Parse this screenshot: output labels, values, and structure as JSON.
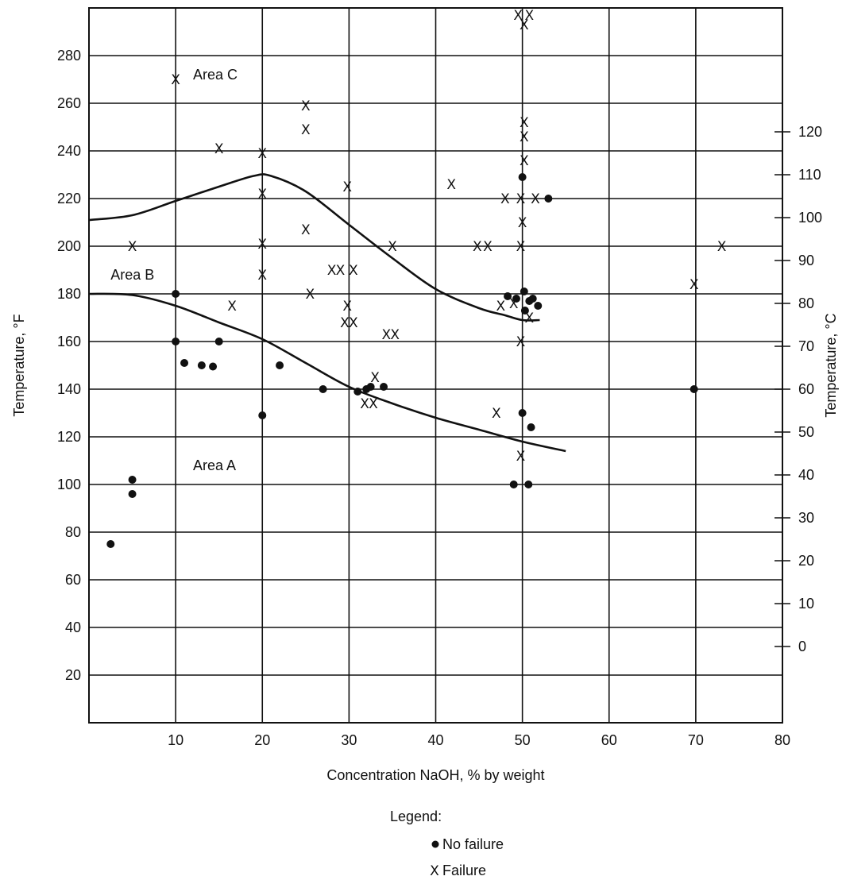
{
  "chart_data": {
    "type": "scatter",
    "title": "",
    "xlabel": "Concentration NaOH, % by weight",
    "ylabel": "Temperature, °F",
    "ylabel_right": "Temperature, °C",
    "xlim": [
      0,
      80
    ],
    "ylim": [
      0,
      300
    ],
    "x_ticks": [
      10,
      20,
      30,
      40,
      50,
      60,
      70,
      80
    ],
    "y_ticks": [
      20,
      40,
      60,
      80,
      100,
      120,
      140,
      160,
      180,
      200,
      220,
      240,
      260,
      280
    ],
    "y_right_ticks": [
      0,
      10,
      20,
      30,
      40,
      50,
      60,
      70,
      80,
      90,
      100,
      110,
      120
    ],
    "grid": true,
    "regions": [
      {
        "label": "Area A",
        "x": 12,
        "y": 108
      },
      {
        "label": "Area B",
        "x": 2.5,
        "y": 188
      },
      {
        "label": "Area C",
        "x": 12,
        "y": 272
      }
    ],
    "curves": [
      {
        "name": "upper boundary",
        "points": [
          [
            0,
            211
          ],
          [
            5,
            213
          ],
          [
            10,
            219
          ],
          [
            15,
            225
          ],
          [
            19,
            229.5
          ],
          [
            21,
            229.5
          ],
          [
            25,
            223
          ],
          [
            30,
            209
          ],
          [
            35,
            195
          ],
          [
            40,
            182
          ],
          [
            45,
            174
          ],
          [
            48,
            171
          ],
          [
            50,
            169
          ],
          [
            52,
            169
          ]
        ]
      },
      {
        "name": "lower boundary",
        "points": [
          [
            0,
            180
          ],
          [
            5,
            179.5
          ],
          [
            10,
            175
          ],
          [
            15,
            168
          ],
          [
            20,
            161
          ],
          [
            25,
            151
          ],
          [
            30,
            141
          ],
          [
            35,
            134
          ],
          [
            40,
            128
          ],
          [
            45,
            123
          ],
          [
            50,
            118
          ],
          [
            55,
            114
          ]
        ]
      }
    ],
    "series": [
      {
        "name": "No failure",
        "marker": "dot",
        "points": [
          [
            2.5,
            75
          ],
          [
            5,
            102
          ],
          [
            5,
            96
          ],
          [
            10,
            180
          ],
          [
            10,
            160
          ],
          [
            11,
            151
          ],
          [
            13,
            150
          ],
          [
            14.3,
            149.5
          ],
          [
            15,
            160
          ],
          [
            20,
            129
          ],
          [
            22,
            150
          ],
          [
            27,
            140
          ],
          [
            31,
            139
          ],
          [
            32,
            140
          ],
          [
            32.5,
            141
          ],
          [
            34,
            141
          ],
          [
            50,
            229
          ],
          [
            50,
            130
          ],
          [
            49,
            100
          ],
          [
            50.7,
            100
          ],
          [
            51,
            124
          ],
          [
            53,
            220
          ],
          [
            48.3,
            179
          ],
          [
            49.3,
            178
          ],
          [
            50.2,
            181
          ],
          [
            50.8,
            177
          ],
          [
            51.2,
            178
          ],
          [
            51.8,
            175
          ],
          [
            50.3,
            173
          ],
          [
            69.8,
            140
          ]
        ]
      },
      {
        "name": "Failure",
        "marker": "x",
        "points": [
          [
            10,
            270
          ],
          [
            5,
            200
          ],
          [
            15,
            241
          ],
          [
            20,
            239
          ],
          [
            20,
            222
          ],
          [
            20,
            201
          ],
          [
            20,
            188
          ],
          [
            16.5,
            175
          ],
          [
            25,
            259
          ],
          [
            25,
            249
          ],
          [
            25,
            207
          ],
          [
            25.5,
            180
          ],
          [
            29.8,
            225
          ],
          [
            28,
            190
          ],
          [
            29,
            190
          ],
          [
            30.5,
            190
          ],
          [
            29.8,
            175
          ],
          [
            29.5,
            168
          ],
          [
            30.5,
            168
          ],
          [
            31.8,
            134
          ],
          [
            32.8,
            134
          ],
          [
            33,
            145
          ],
          [
            34.3,
            163
          ],
          [
            35.3,
            163
          ],
          [
            35,
            200
          ],
          [
            41.8,
            226
          ],
          [
            44.8,
            200
          ],
          [
            46,
            200
          ],
          [
            47,
            130
          ],
          [
            47.5,
            175
          ],
          [
            48,
            220
          ],
          [
            49,
            176
          ],
          [
            49.8,
            220
          ],
          [
            51.5,
            220
          ],
          [
            49.8,
            200
          ],
          [
            50,
            210
          ],
          [
            49.8,
            160
          ],
          [
            49.8,
            112
          ],
          [
            49.5,
            297
          ],
          [
            50.8,
            297
          ],
          [
            50.2,
            293
          ],
          [
            50.2,
            252
          ],
          [
            50.2,
            246
          ],
          [
            50.2,
            236
          ],
          [
            50.8,
            170
          ],
          [
            69.8,
            184
          ],
          [
            73,
            200
          ]
        ]
      }
    ]
  },
  "legend": {
    "title": "Legend:",
    "items": [
      {
        "label": "No failure",
        "marker": "dot"
      },
      {
        "label": "Failure",
        "marker": "x"
      }
    ]
  }
}
